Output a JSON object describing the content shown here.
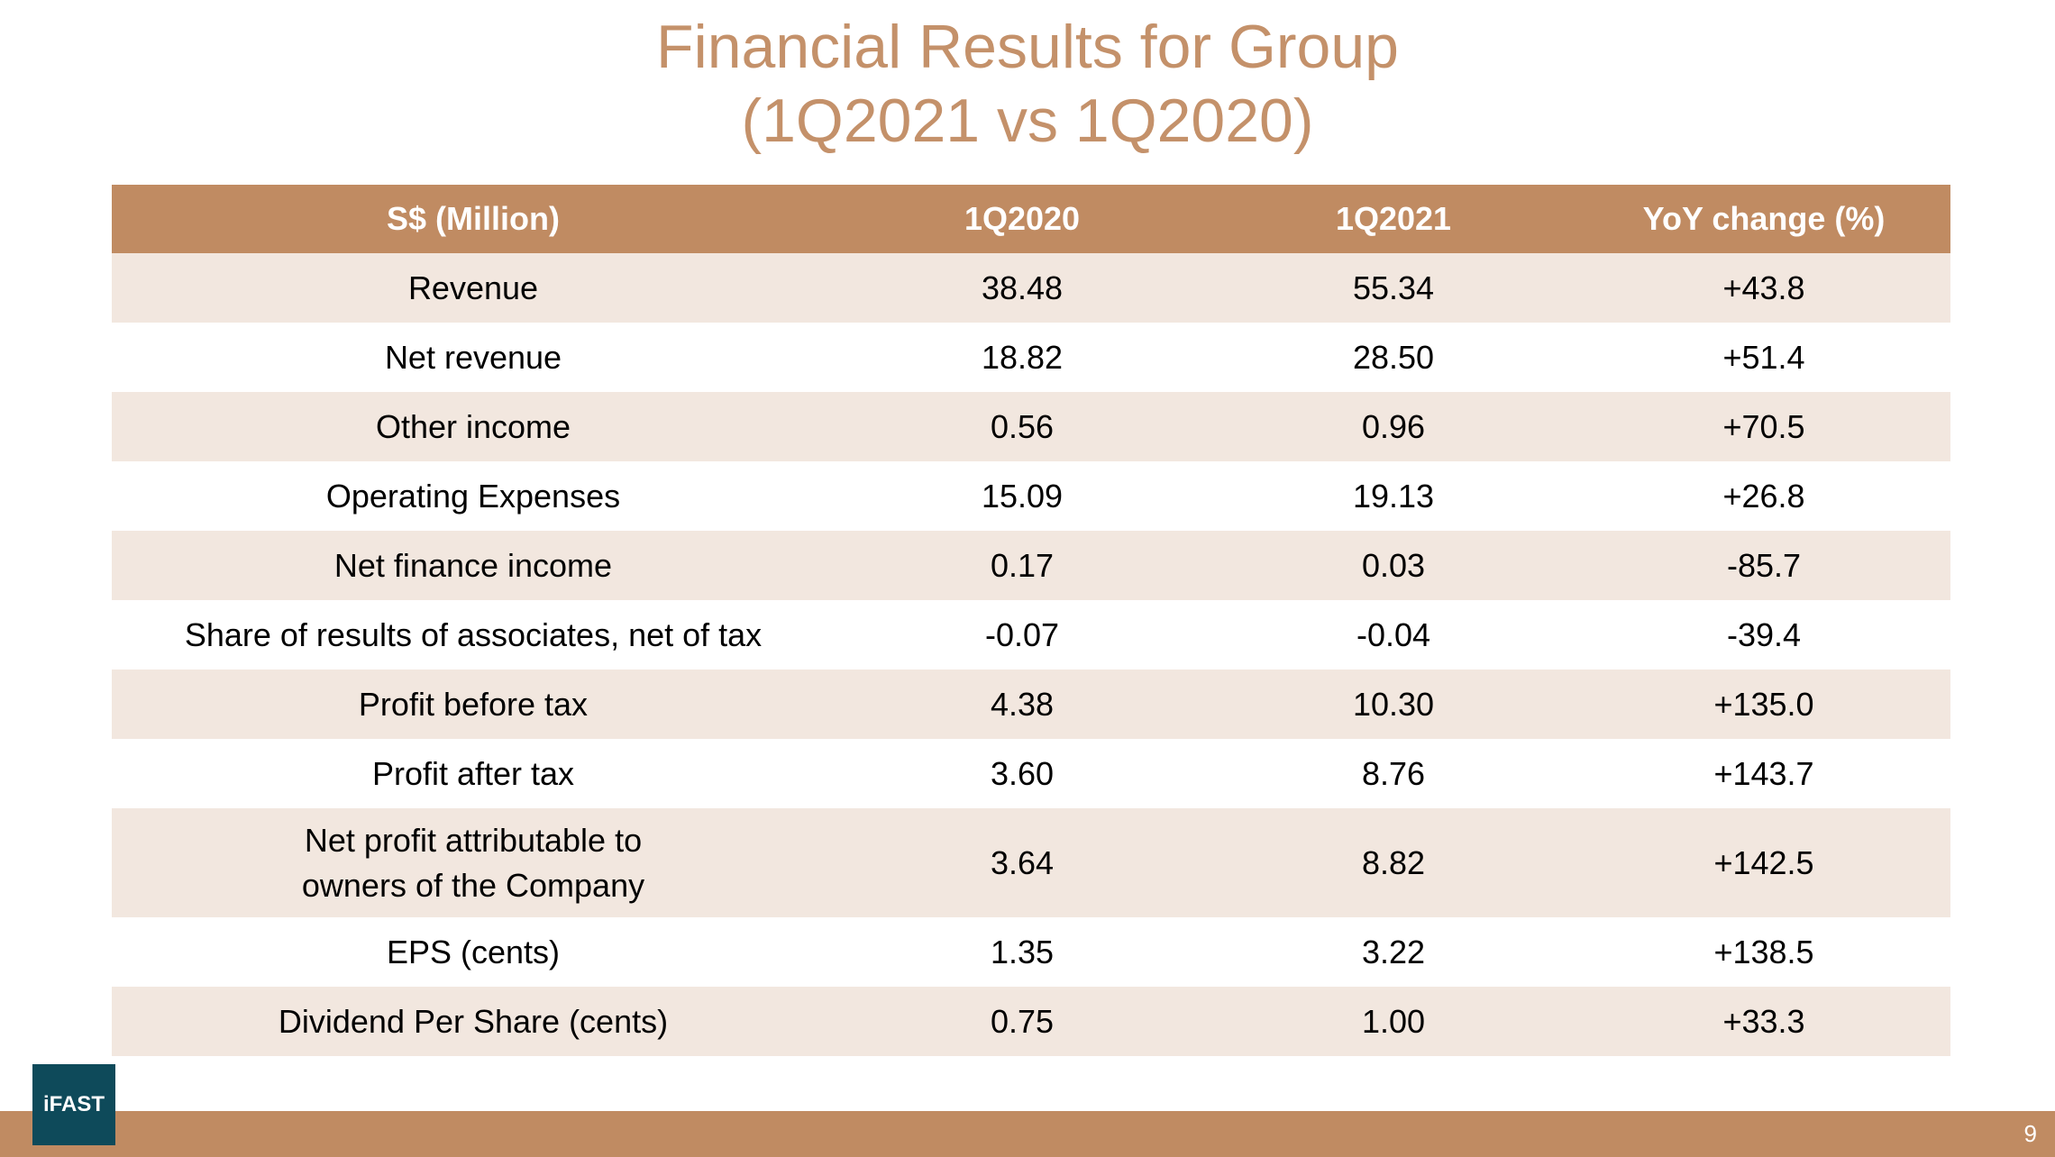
{
  "header": {
    "title_line1": "Financial Results for Group",
    "title_line2": "(1Q2021 vs 1Q2020)"
  },
  "table": {
    "columns": [
      "S$ (Million)",
      "1Q2020",
      "1Q2021",
      "YoY change (%)"
    ],
    "rows": [
      [
        "Revenue",
        "38.48",
        "55.34",
        "+43.8"
      ],
      [
        "Net revenue",
        "18.82",
        "28.50",
        "+51.4"
      ],
      [
        "Other income",
        "0.56",
        "0.96",
        "+70.5"
      ],
      [
        "Operating Expenses",
        "15.09",
        "19.13",
        "+26.8"
      ],
      [
        "Net finance income",
        "0.17",
        "0.03",
        "-85.7"
      ],
      [
        "Share of results of associates, net of tax",
        "-0.07",
        "-0.04",
        "-39.4"
      ],
      [
        "Profit before tax",
        "4.38",
        "10.30",
        "+135.0"
      ],
      [
        "Profit after tax",
        "3.60",
        "8.76",
        "+143.7"
      ],
      [
        "Net profit attributable to\nowners of the Company",
        "3.64",
        "8.82",
        "+142.5"
      ],
      [
        "EPS (cents)",
        "1.35",
        "3.22",
        "+138.5"
      ],
      [
        "Dividend Per Share (cents)",
        "0.75",
        "1.00",
        "+33.3"
      ]
    ]
  },
  "footer": {
    "logo": "iFAST",
    "page_number": "9"
  }
}
